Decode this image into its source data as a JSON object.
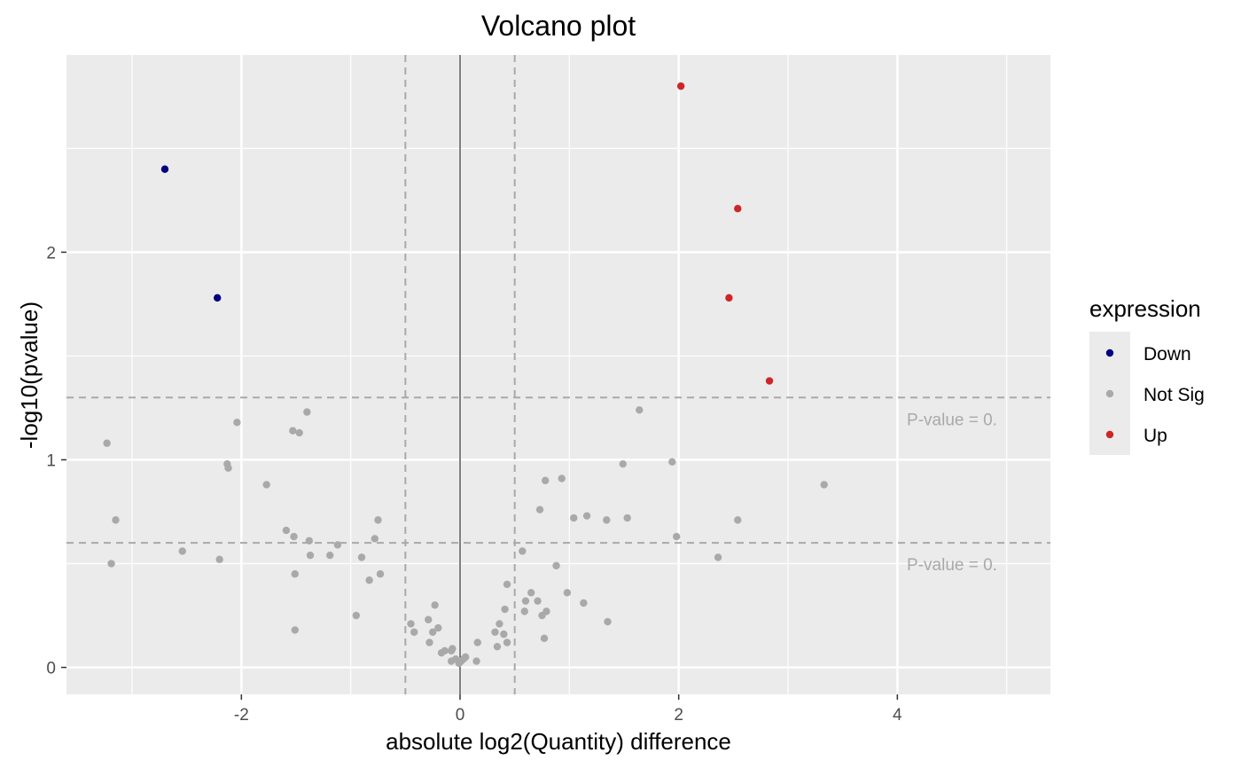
{
  "chart_data": {
    "type": "scatter",
    "title": "Volcano plot",
    "xlabel": "absolute log2(Quantity) difference",
    "ylabel": "-log10(pvalue)",
    "xlim": [
      -3.6,
      5.4
    ],
    "ylim": [
      -0.13,
      2.95
    ],
    "x_ticks": [
      -2,
      0,
      2,
      4
    ],
    "y_ticks": [
      0,
      1,
      2
    ],
    "grid": true,
    "legend": {
      "title": "expression",
      "position": "right",
      "entries": [
        {
          "label": "Down",
          "color": "#000080"
        },
        {
          "label": "Not Sig",
          "color": "#a9a9a9"
        },
        {
          "label": "Up",
          "color": "#cd2626"
        }
      ]
    },
    "threshold_lines": {
      "vertical_x": [
        -0.5,
        0.5
      ],
      "horizontal_y": [
        1.3,
        0.6
      ],
      "zero_line_x": 0,
      "color": "#a9a9a9"
    },
    "annotations": [
      {
        "text": "P-value =  0.",
        "x": 4.5,
        "y": 1.3
      },
      {
        "text": "P-value =  0.",
        "x": 4.5,
        "y": 0.6
      }
    ],
    "series": [
      {
        "name": "Down",
        "color": "#000080",
        "points": [
          [
            -2.7,
            2.4
          ],
          [
            -2.22,
            1.78
          ]
        ]
      },
      {
        "name": "Up",
        "color": "#cd2626",
        "points": [
          [
            2.02,
            2.8
          ],
          [
            2.54,
            2.21
          ],
          [
            2.46,
            1.78
          ],
          [
            2.83,
            1.38
          ]
        ]
      },
      {
        "name": "Not Sig",
        "color": "#a9a9a9",
        "points": [
          [
            -3.23,
            1.08
          ],
          [
            -3.15,
            0.71
          ],
          [
            -3.19,
            0.5
          ],
          [
            -2.54,
            0.56
          ],
          [
            -2.2,
            0.52
          ],
          [
            -2.13,
            0.98
          ],
          [
            -2.12,
            0.96
          ],
          [
            -2.04,
            1.18
          ],
          [
            -1.77,
            0.88
          ],
          [
            -1.59,
            0.66
          ],
          [
            -1.53,
            1.14
          ],
          [
            -1.52,
            0.63
          ],
          [
            -1.51,
            0.45
          ],
          [
            -1.51,
            0.18
          ],
          [
            -1.47,
            1.13
          ],
          [
            -1.4,
            1.23
          ],
          [
            -1.38,
            0.61
          ],
          [
            -1.37,
            0.54
          ],
          [
            -1.19,
            0.54
          ],
          [
            -1.12,
            0.59
          ],
          [
            -0.95,
            0.25
          ],
          [
            -0.9,
            0.53
          ],
          [
            -0.83,
            0.42
          ],
          [
            -0.78,
            0.62
          ],
          [
            -0.75,
            0.71
          ],
          [
            -0.73,
            0.45
          ],
          [
            -0.45,
            0.21
          ],
          [
            -0.42,
            0.17
          ],
          [
            -0.29,
            0.23
          ],
          [
            -0.28,
            0.12
          ],
          [
            -0.25,
            0.17
          ],
          [
            -0.23,
            0.3
          ],
          [
            -0.2,
            0.19
          ],
          [
            -0.17,
            0.07
          ],
          [
            -0.14,
            0.08
          ],
          [
            -0.08,
            0.08
          ],
          [
            -0.07,
            0.09
          ],
          [
            -0.08,
            0.03
          ],
          [
            -0.04,
            0.04
          ],
          [
            -0.01,
            0.02
          ],
          [
            0.01,
            0.03
          ],
          [
            0.03,
            0.04
          ],
          [
            0.05,
            0.05
          ],
          [
            0.15,
            0.03
          ],
          [
            0.16,
            0.12
          ],
          [
            0.32,
            0.17
          ],
          [
            0.34,
            0.1
          ],
          [
            0.36,
            0.21
          ],
          [
            0.4,
            0.16
          ],
          [
            0.41,
            0.28
          ],
          [
            0.43,
            0.12
          ],
          [
            0.43,
            0.4
          ],
          [
            0.57,
            0.56
          ],
          [
            0.59,
            0.27
          ],
          [
            0.6,
            0.32
          ],
          [
            0.65,
            0.36
          ],
          [
            0.71,
            0.32
          ],
          [
            0.73,
            0.76
          ],
          [
            0.75,
            0.25
          ],
          [
            0.77,
            0.14
          ],
          [
            0.78,
            0.9
          ],
          [
            0.79,
            0.27
          ],
          [
            0.88,
            0.49
          ],
          [
            0.93,
            0.91
          ],
          [
            0.98,
            0.36
          ],
          [
            1.04,
            0.72
          ],
          [
            1.13,
            0.31
          ],
          [
            1.16,
            0.73
          ],
          [
            1.34,
            0.71
          ],
          [
            1.35,
            0.22
          ],
          [
            1.49,
            0.98
          ],
          [
            1.53,
            0.72
          ],
          [
            1.64,
            1.24
          ],
          [
            1.94,
            0.99
          ],
          [
            1.98,
            0.63
          ],
          [
            2.36,
            0.53
          ],
          [
            2.54,
            0.71
          ],
          [
            3.33,
            0.88
          ]
        ]
      }
    ]
  }
}
